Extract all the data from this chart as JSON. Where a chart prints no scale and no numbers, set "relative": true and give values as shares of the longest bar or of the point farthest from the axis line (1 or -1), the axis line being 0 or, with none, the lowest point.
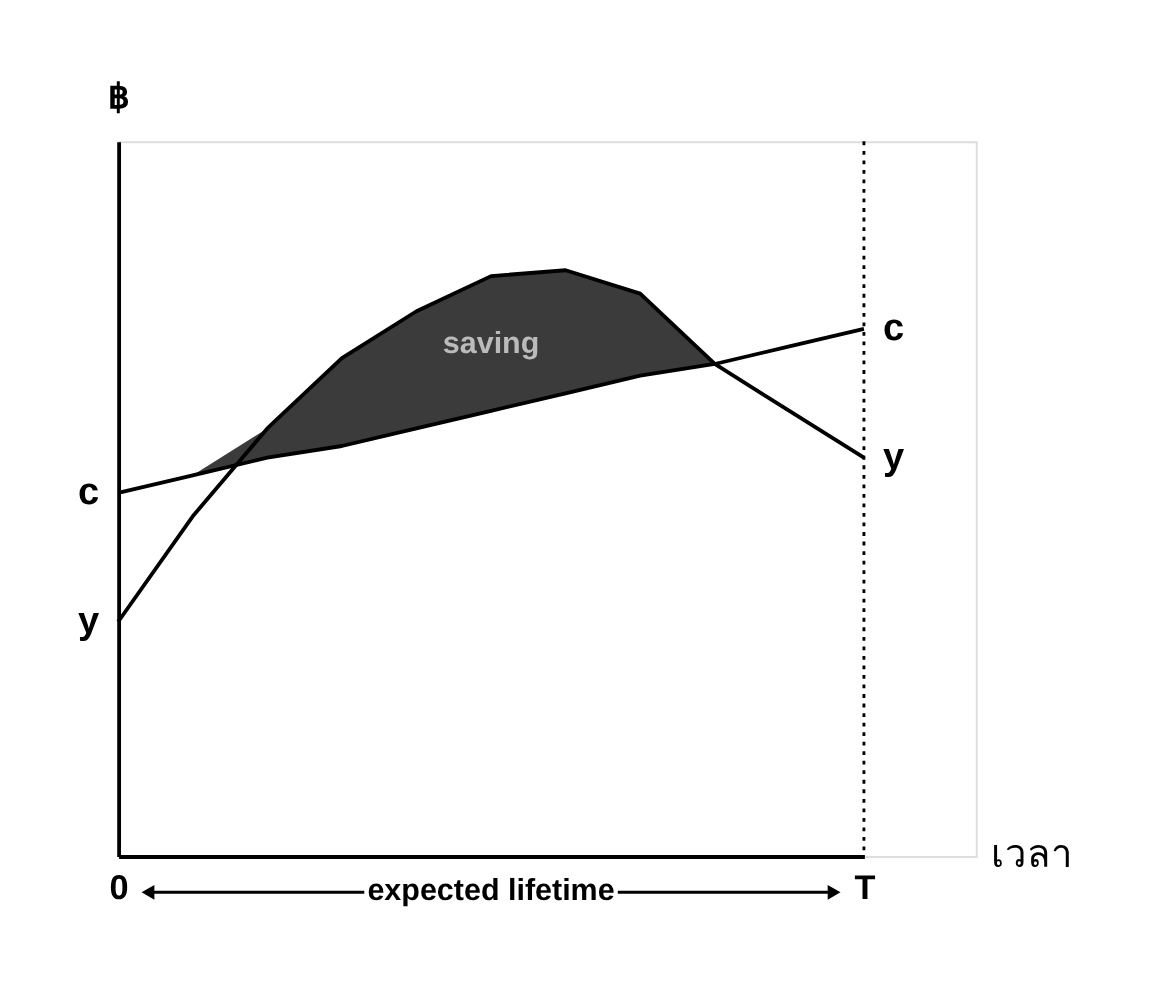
{
  "chart_data": {
    "type": "line",
    "relative": true,
    "ylabel": "฿",
    "xlabel": "เวลา",
    "categories": [
      "0",
      null,
      null,
      null,
      null,
      null,
      null,
      null,
      null,
      null,
      "T"
    ],
    "annotations": [
      "saving",
      "expected lifetime"
    ],
    "grid": false,
    "legend": false,
    "marker": "none",
    "line_style": "solid",
    "ref_lines": [
      {
        "axis": "x",
        "value": "T",
        "label": null,
        "color": "#000000",
        "line_style": "dotted"
      }
    ],
    "series": [
      {
        "name": "y",
        "color": "#000000",
        "values": [
          0.4,
          0.58,
          0.73,
          0.85,
          0.93,
          0.99,
          1.0,
          0.96,
          0.84,
          0.76,
          0.68
        ],
        "lower": [
          null,
          0.65,
          0.68,
          0.7,
          0.73,
          0.76,
          0.79,
          0.82,
          0.84,
          null,
          null
        ],
        "upper": [
          null,
          0.65,
          0.73,
          0.85,
          0.93,
          0.99,
          1.0,
          0.96,
          0.84,
          null,
          null
        ]
      },
      {
        "name": "c",
        "color": "#000000",
        "values": [
          0.62,
          0.65,
          0.68,
          0.7,
          0.73,
          0.76,
          0.79,
          0.82,
          0.84,
          0.87,
          0.9
        ]
      }
    ]
  }
}
